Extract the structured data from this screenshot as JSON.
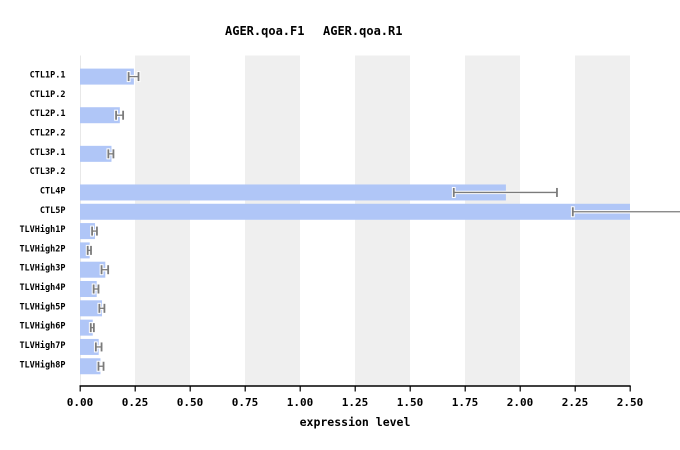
{
  "chart_data": {
    "type": "bar",
    "orientation": "horizontal",
    "title_labels": [
      "AGER.qoa.F1",
      "AGER.qoa.R1"
    ],
    "xlabel": "expression level",
    "categories": [
      "CTL1P.1",
      "CTL1P.2",
      "CTL2P.1",
      "CTL2P.2",
      "CTL3P.1",
      "CTL3P.2",
      "CTL4P",
      "CTL5P",
      "TLVHigh1P",
      "TLVHigh2P",
      "TLVHigh3P",
      "TLVHigh4P",
      "TLVHigh5P",
      "TLVHigh6P",
      "TLVHigh7P",
      "TLVHigh8P"
    ],
    "values": [
      0.245,
      0,
      0.181,
      0,
      0.143,
      0,
      1.936,
      2.5,
      0.068,
      0.044,
      0.115,
      0.076,
      0.1,
      0.058,
      0.085,
      0.093
    ],
    "errors": [
      {
        "low": 0.221,
        "high": 0.266
      },
      null,
      {
        "low": 0.164,
        "high": 0.196
      },
      null,
      {
        "low": 0.129,
        "high": 0.152
      },
      null,
      {
        "low": 1.699,
        "high": 2.168
      },
      {
        "low": 2.24,
        "high": 2.76
      },
      {
        "low": 0.055,
        "high": 0.077
      },
      {
        "low": 0.035,
        "high": 0.05
      },
      {
        "low": 0.098,
        "high": 0.128
      },
      {
        "low": 0.062,
        "high": 0.084
      },
      {
        "low": 0.088,
        "high": 0.111
      },
      {
        "low": 0.049,
        "high": 0.063
      },
      {
        "low": 0.072,
        "high": 0.098
      },
      {
        "low": 0.084,
        "high": 0.107
      }
    ],
    "xlim": [
      0,
      2.5
    ],
    "xticks": [
      0,
      0.25,
      0.5,
      0.75,
      1,
      1.25,
      1.5,
      1.75,
      2,
      2.25,
      2.5
    ],
    "xtick_labels": [
      "0.00",
      "0.25",
      "0.50",
      "0.75",
      "1.00",
      "1.25",
      "1.50",
      "1.75",
      "2.00",
      "2.25",
      "2.50"
    ],
    "legend_position": "top",
    "grid": "alternating-vertical-stripes",
    "colors": {
      "bar": "#b0c6f7",
      "stripe": "#efefef",
      "error_bar": "#7b7b7b",
      "error_halo": "#ffffff",
      "axis": "#000000",
      "baseline": "#e8e8e8",
      "background": "#ffffff",
      "text": "#000000"
    }
  }
}
